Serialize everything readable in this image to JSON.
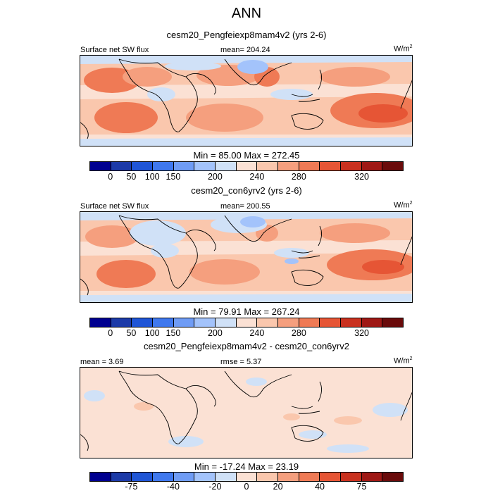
{
  "title": "ANN",
  "panels": [
    {
      "case_title": "cesm20_Pengfeiexp8mam4v2 (yrs 2-6)",
      "left_label": "Surface net SW flux",
      "center_label": "mean= 204.24",
      "units": "W/m",
      "units_sup": "2",
      "minmax": "Min =  85.00 Max = 272.45"
    },
    {
      "case_title": "cesm20_con6yrv2 (yrs 2-6)",
      "left_label": "Surface net SW flux",
      "center_label": "mean= 200.55",
      "units": "W/m",
      "units_sup": "2",
      "minmax": "Min =  79.91 Max = 267.24"
    },
    {
      "case_title": "cesm20_Pengfeiexp8mam4v2 - cesm20_con6yrv2",
      "left_label": "mean =   3.69",
      "center_label": "rmse =   5.37",
      "units": "W/m",
      "units_sup": "2",
      "minmax": "Min = -17.24 Max =  23.19"
    }
  ],
  "colorbar_abs": {
    "colors": [
      "#000090",
      "#1c3aa8",
      "#1f55d6",
      "#3f78ee",
      "#6f9cf5",
      "#a3c3fb",
      "#d0e1f7",
      "#fbe1d4",
      "#fac7ad",
      "#f59f7e",
      "#ef7a55",
      "#e65535",
      "#c9311f",
      "#9f1815",
      "#6a0b0b"
    ],
    "ticks": [
      {
        "label": "0",
        "frac": 0.0667
      },
      {
        "label": "50",
        "frac": 0.1333
      },
      {
        "label": "100",
        "frac": 0.2
      },
      {
        "label": "150",
        "frac": 0.2667
      },
      {
        "label": "200",
        "frac": 0.4
      },
      {
        "label": "240",
        "frac": 0.5333
      },
      {
        "label": "280",
        "frac": 0.6667
      },
      {
        "label": "320",
        "frac": 0.8667
      }
    ]
  },
  "colorbar_diff": {
    "colors": [
      "#000090",
      "#1c3aa8",
      "#1f55d6",
      "#3f78ee",
      "#6f9cf5",
      "#a3c3fb",
      "#d0e1f7",
      "#fbe1d4",
      "#fac7ad",
      "#f59f7e",
      "#ef7a55",
      "#e65535",
      "#c9311f",
      "#9f1815",
      "#6a0b0b"
    ],
    "ticks": [
      {
        "label": "-75",
        "frac": 0.1333
      },
      {
        "label": "-40",
        "frac": 0.2667
      },
      {
        "label": "-20",
        "frac": 0.4
      },
      {
        "label": "0",
        "frac": 0.5
      },
      {
        "label": "20",
        "frac": 0.6
      },
      {
        "label": "40",
        "frac": 0.7333
      },
      {
        "label": "75",
        "frac": 0.8667
      }
    ]
  }
}
